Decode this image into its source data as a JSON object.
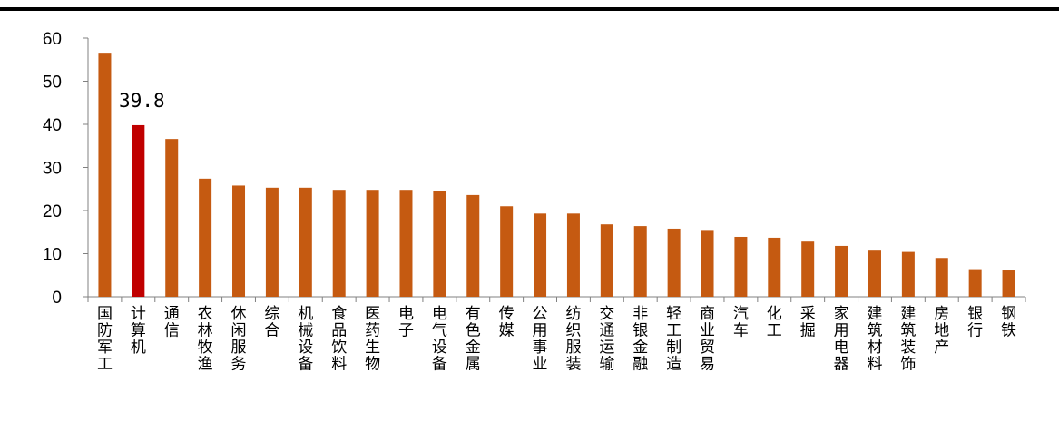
{
  "chart_data": {
    "type": "bar",
    "categories": [
      "国防军工",
      "计算机",
      "通信",
      "农林牧渔",
      "休闲服务",
      "综合",
      "机械设备",
      "食品饮料",
      "医药生物",
      "电子",
      "电气设备",
      "有色金属",
      "传媒",
      "公用事业",
      "纺织服装",
      "交通运输",
      "非银金融",
      "轻工制造",
      "商业贸易",
      "汽车",
      "化工",
      "采掘",
      "家用电器",
      "建筑材料",
      "建筑装饰",
      "房地产",
      "银行",
      "钢铁"
    ],
    "values": [
      56.6,
      39.8,
      36.6,
      27.4,
      25.8,
      25.3,
      25.3,
      24.8,
      24.8,
      24.8,
      24.5,
      23.6,
      21.0,
      19.3,
      19.3,
      16.8,
      16.4,
      15.8,
      15.5,
      13.9,
      13.7,
      12.8,
      11.8,
      10.7,
      10.4,
      9.0,
      6.4,
      6.1
    ],
    "highlight_index": 1,
    "data_labels": [
      {
        "index": 1,
        "text": "39.8"
      }
    ],
    "yticks": [
      "0",
      "10",
      "20",
      "30",
      "40",
      "50",
      "60"
    ],
    "ylim": [
      0,
      60
    ],
    "grid": false,
    "legend": "none",
    "colors": {
      "bar": "#C55A11",
      "highlight": "#C00000",
      "axis": "#808080"
    }
  }
}
